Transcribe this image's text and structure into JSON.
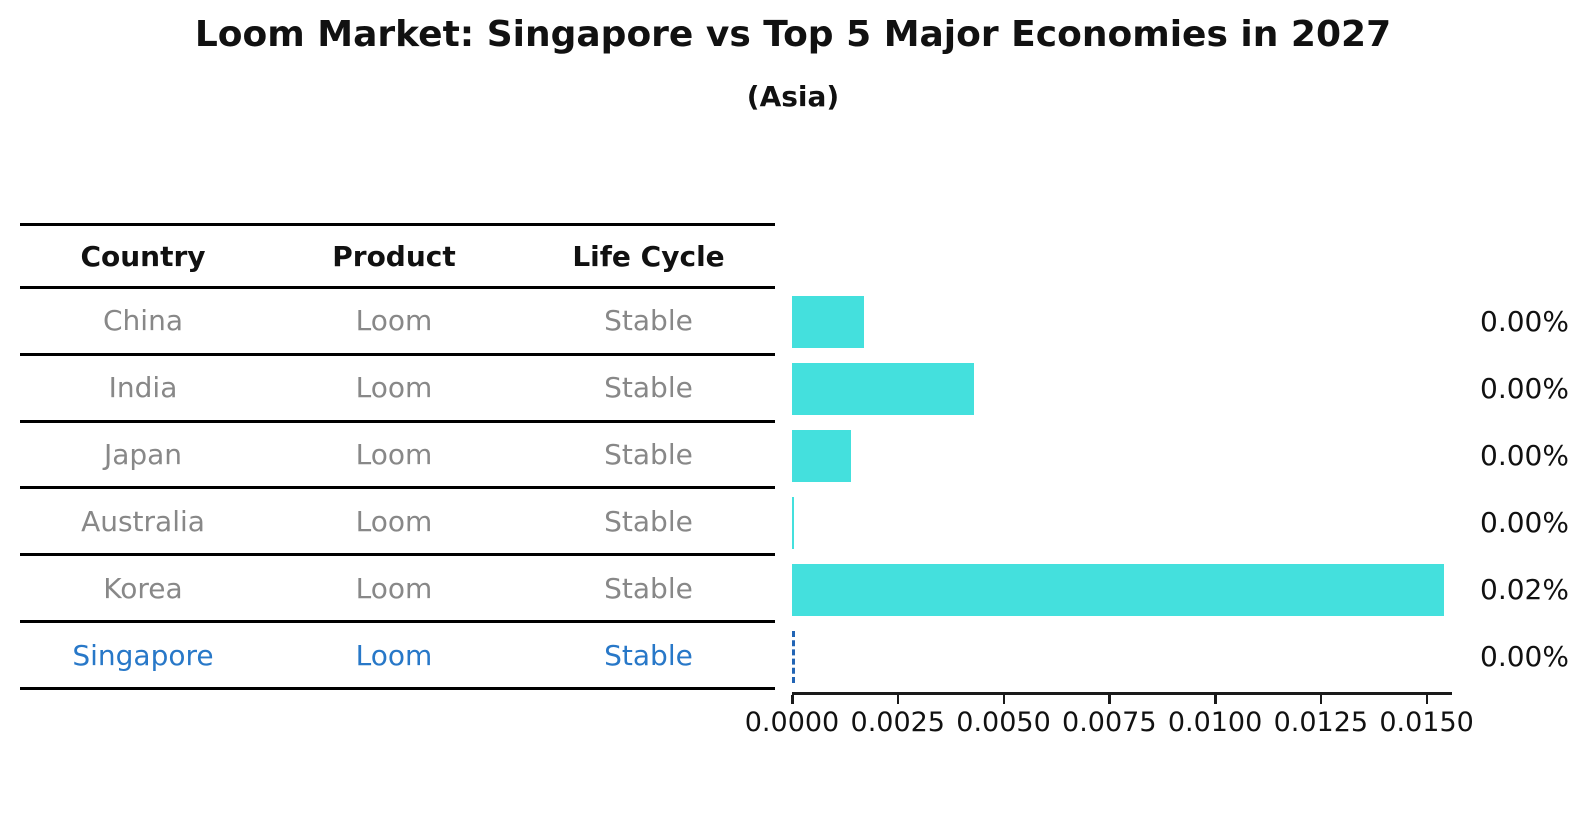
{
  "title": "Loom Market: Singapore vs Top 5 Major Economies in 2027",
  "subtitle": "(Asia)",
  "table": {
    "headers": [
      "Country",
      "Product",
      "Life Cycle"
    ],
    "rows": [
      {
        "country": "China",
        "product": "Loom",
        "life_cycle": "Stable"
      },
      {
        "country": "India",
        "product": "Loom",
        "life_cycle": "Stable"
      },
      {
        "country": "Japan",
        "product": "Loom",
        "life_cycle": "Stable"
      },
      {
        "country": "Australia",
        "product": "Loom",
        "life_cycle": "Stable"
      },
      {
        "country": "Korea",
        "product": "Loom",
        "life_cycle": "Stable"
      },
      {
        "country": "Singapore",
        "product": "Loom",
        "life_cycle": "Stable"
      }
    ],
    "highlight_row": "Singapore"
  },
  "chart_data": {
    "type": "bar",
    "orientation": "horizontal",
    "title": "Loom Market: Singapore vs Top 5 Major Economies in 2027",
    "subtitle": "(Asia)",
    "categories": [
      "China",
      "India",
      "Japan",
      "Australia",
      "Korea",
      "Singapore"
    ],
    "values": [
      0.0017,
      0.0043,
      0.0014,
      2e-05,
      0.0154,
      2e-05
    ],
    "value_labels": [
      "0.00%",
      "0.00%",
      "0.00%",
      "0.00%",
      "0.02%",
      "0.00%"
    ],
    "x_ticks": [
      0,
      0.0025,
      0.005,
      0.0075,
      0.01,
      0.0125,
      0.015
    ],
    "x_tick_labels": [
      "0.0000",
      "0.0025",
      "0.0050",
      "0.0075",
      "0.0100",
      "0.0125",
      "0.0150"
    ],
    "xlim": [
      0,
      0.0156
    ],
    "grid": false,
    "legend": false,
    "bar_color": "#44e0dd",
    "highlight_category": "Singapore",
    "highlight_edge_color": "#2265b5",
    "highlight_edge_style": "dashed"
  },
  "colors": {
    "bar": "#44e0dd",
    "highlight_text": "#2878c8",
    "highlight_edge": "#2265b5",
    "row_text": "#888888",
    "heading_text": "#111111",
    "line": "#000000"
  }
}
